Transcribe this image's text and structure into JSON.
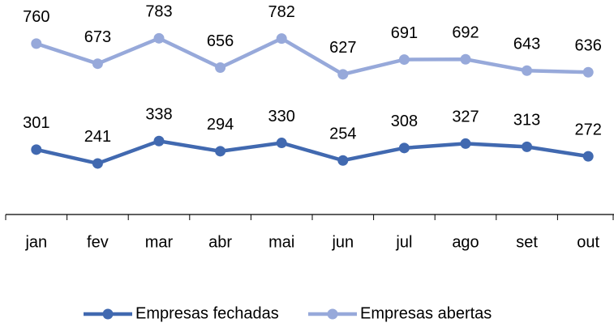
{
  "chart_data": {
    "type": "line",
    "categories": [
      "jan",
      "fev",
      "mar",
      "abr",
      "mai",
      "jun",
      "jul",
      "ago",
      "set",
      "out"
    ],
    "series": [
      {
        "name": "Empresas fechadas",
        "color": "#4169b0",
        "values": [
          301,
          241,
          338,
          294,
          330,
          254,
          308,
          327,
          313,
          272
        ]
      },
      {
        "name": "Empresas abertas",
        "color": "#97a9da",
        "values": [
          760,
          673,
          783,
          656,
          782,
          627,
          691,
          692,
          643,
          636
        ]
      }
    ],
    "ylim": [
      20,
      850
    ]
  }
}
